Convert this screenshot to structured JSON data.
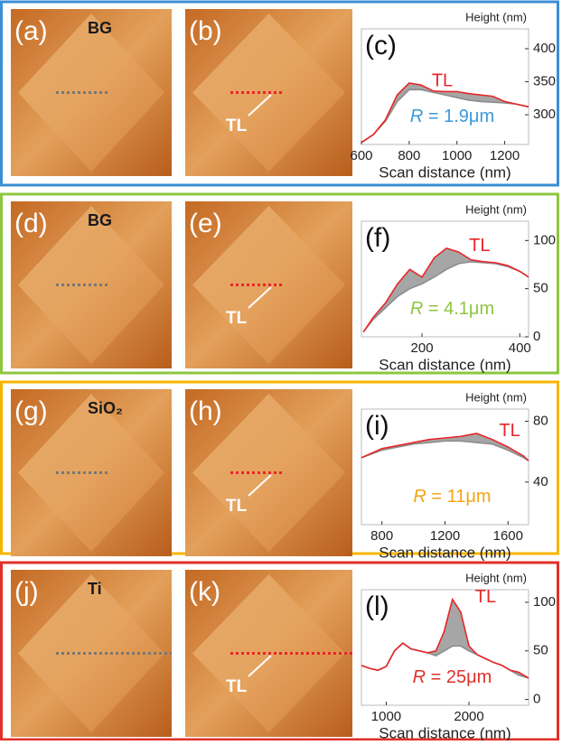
{
  "chart_data": [
    {
      "type": "line",
      "panel": "(c)",
      "ylabel": "Height (nm)",
      "xlabel": "Scan distance (nm)",
      "frame_color": "#3a8fd6",
      "radius_symbol": "R",
      "radius_text": "= 1.9μm",
      "radius_color": "#3a9ad9",
      "fill_between": true,
      "x": [
        600,
        650,
        700,
        750,
        800,
        850,
        900,
        950,
        1000,
        1050,
        1100,
        1150,
        1200,
        1250,
        1300
      ],
      "series": [
        {
          "color": "#8c8c8c",
          "values": [
            258,
            270,
            290,
            320,
            338,
            338,
            334,
            330,
            326,
            322,
            320,
            319,
            318,
            316,
            312
          ]
        },
        {
          "name": "TL",
          "color": "#e8262a",
          "values": [
            258,
            270,
            292,
            330,
            348,
            345,
            336,
            335,
            335,
            332,
            330,
            328,
            320,
            316,
            312
          ]
        }
      ],
      "xlim": [
        600,
        1300
      ],
      "xticks": [
        600,
        800,
        1000,
        1200
      ],
      "ylim": [
        255,
        430
      ],
      "yticks": [
        300,
        350,
        400
      ]
    },
    {
      "type": "line",
      "panel": "(f)",
      "ylabel": "Height (nm)",
      "xlabel": "Scan distance (nm)",
      "frame_color": "#8dc63f",
      "radius_symbol": "R",
      "radius_text": "= 4.1μm",
      "radius_color": "#8dc63f",
      "fill_between": true,
      "x": [
        80,
        100,
        125,
        150,
        175,
        200,
        225,
        250,
        275,
        300,
        325,
        350,
        375,
        400,
        418
      ],
      "series": [
        {
          "color": "#8c8c8c",
          "values": [
            5,
            18,
            30,
            42,
            50,
            55,
            62,
            70,
            76,
            78,
            77,
            76,
            73,
            68,
            62
          ]
        },
        {
          "name": "TL",
          "color": "#e8262a",
          "values": [
            5,
            20,
            35,
            55,
            70,
            62,
            82,
            92,
            88,
            80,
            78,
            77,
            74,
            68,
            62
          ]
        }
      ],
      "xlim": [
        76,
        418
      ],
      "xticks": [
        200,
        400
      ],
      "ylim": [
        0,
        120
      ],
      "yticks": [
        0,
        50,
        100
      ]
    },
    {
      "type": "line",
      "panel": "(i)",
      "ylabel": "Height (nm)",
      "xlabel": "Scan distance (nm)",
      "frame_color": "#f7b500",
      "radius_symbol": "R",
      "radius_text": "= 11μm",
      "radius_color": "#f2a516",
      "fill_between": true,
      "x": [
        670,
        800,
        900,
        1000,
        1100,
        1200,
        1300,
        1400,
        1500,
        1600,
        1700,
        1730
      ],
      "series": [
        {
          "color": "#8c8c8c",
          "values": [
            56,
            61,
            63,
            65,
            66,
            67,
            67,
            66,
            65,
            61,
            56,
            54
          ]
        },
        {
          "name": "TL",
          "color": "#e8262a",
          "values": [
            56,
            62,
            64,
            66,
            68,
            69,
            70,
            72,
            68,
            63,
            57,
            54
          ]
        }
      ],
      "xlim": [
        670,
        1730
      ],
      "xticks": [
        800,
        1200,
        1600
      ],
      "ylim": [
        12,
        88
      ],
      "yticks": [
        40,
        80
      ]
    },
    {
      "type": "line",
      "panel": "(l)",
      "ylabel": "Height (nm)",
      "xlabel": "Scan distance (nm)",
      "frame_color": "#e0302a",
      "radius_symbol": "R",
      "radius_text": "= 25μm",
      "radius_color": "#e0302a",
      "fill_between": true,
      "x": [
        700,
        800,
        900,
        1000,
        1100,
        1200,
        1300,
        1400,
        1500,
        1600,
        1700,
        1800,
        1900,
        2000,
        2100,
        2200,
        2300,
        2400,
        2500,
        2600,
        2720
      ],
      "series": [
        {
          "color": "#8c8c8c",
          "values": [
            35,
            32,
            30,
            34,
            50,
            58,
            52,
            50,
            48,
            45,
            50,
            55,
            55,
            50,
            46,
            42,
            38,
            35,
            30,
            25,
            22
          ]
        },
        {
          "name": "TL",
          "color": "#e8262a",
          "values": [
            35,
            32,
            30,
            34,
            50,
            58,
            52,
            50,
            48,
            50,
            70,
            103,
            90,
            55,
            46,
            42,
            38,
            35,
            30,
            28,
            22
          ]
        }
      ],
      "xlim": [
        700,
        2720
      ],
      "xticks": [
        1000,
        2000
      ],
      "ylim": [
        -6,
        113
      ],
      "yticks": [
        0,
        50,
        100
      ]
    }
  ],
  "images": [
    {
      "label": "(a)",
      "tag": "BG"
    },
    {
      "label": "(b)",
      "annotation": "TL"
    },
    {
      "label": "(d)",
      "tag": "BG"
    },
    {
      "label": "(e)",
      "annotation": "TL"
    },
    {
      "label": "(g)",
      "tag": "SiO₂"
    },
    {
      "label": "(h)",
      "annotation": "TL"
    },
    {
      "label": "(j)",
      "tag": "Ti"
    },
    {
      "label": "(k)",
      "annotation": "TL"
    }
  ]
}
